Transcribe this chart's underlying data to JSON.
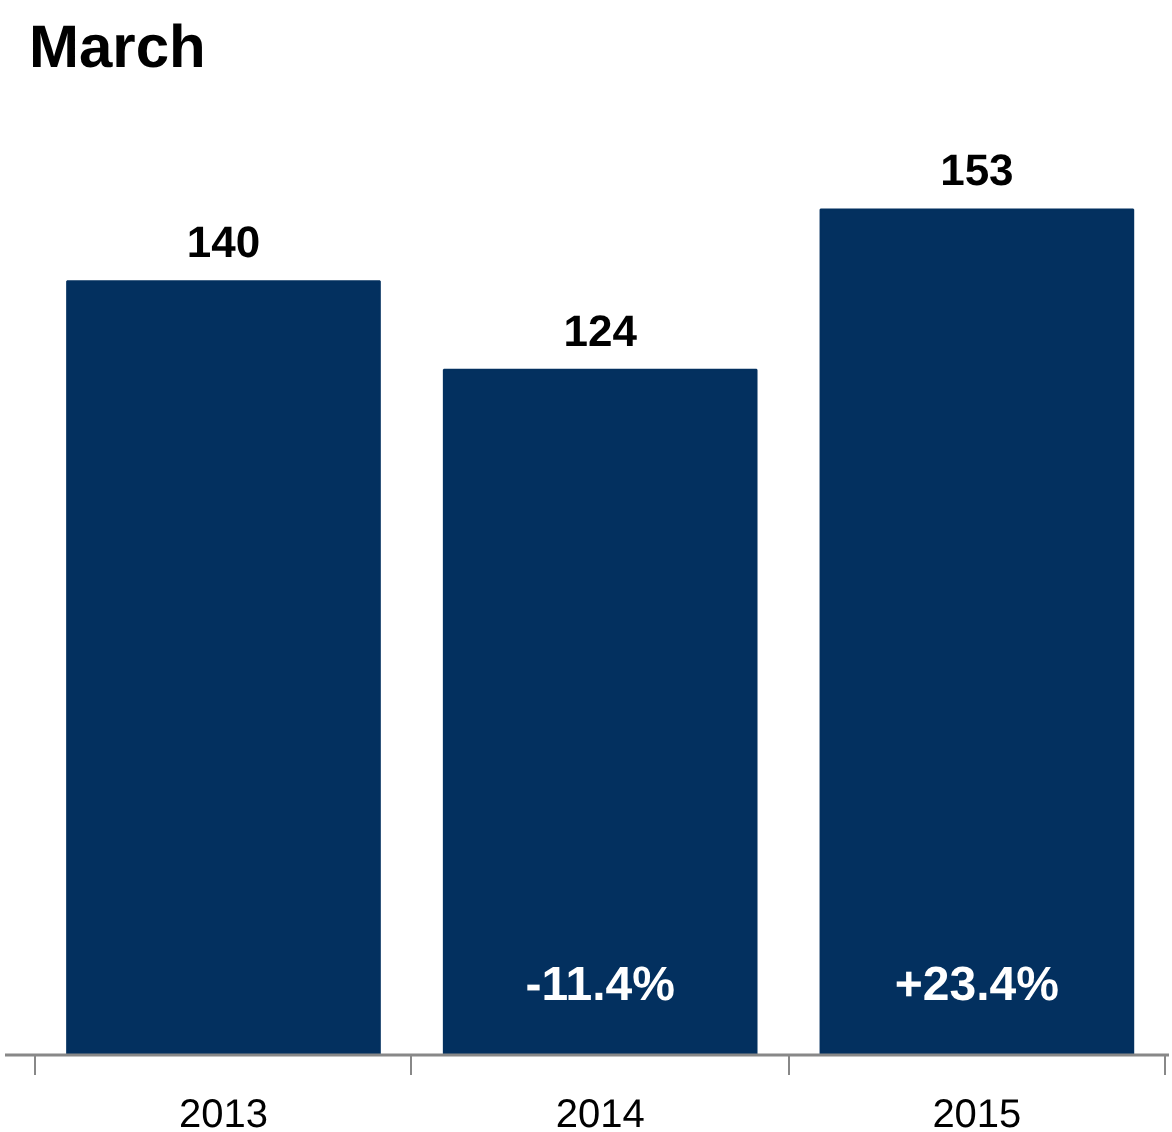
{
  "chart_data": {
    "type": "bar",
    "title": "March",
    "categories": [
      "2013",
      "2014",
      "2015"
    ],
    "values": [
      140,
      124,
      153
    ],
    "color": "#03305f",
    "data_labels": true,
    "annotations": [
      "-11.4%",
      "+23.4%"
    ]
  }
}
